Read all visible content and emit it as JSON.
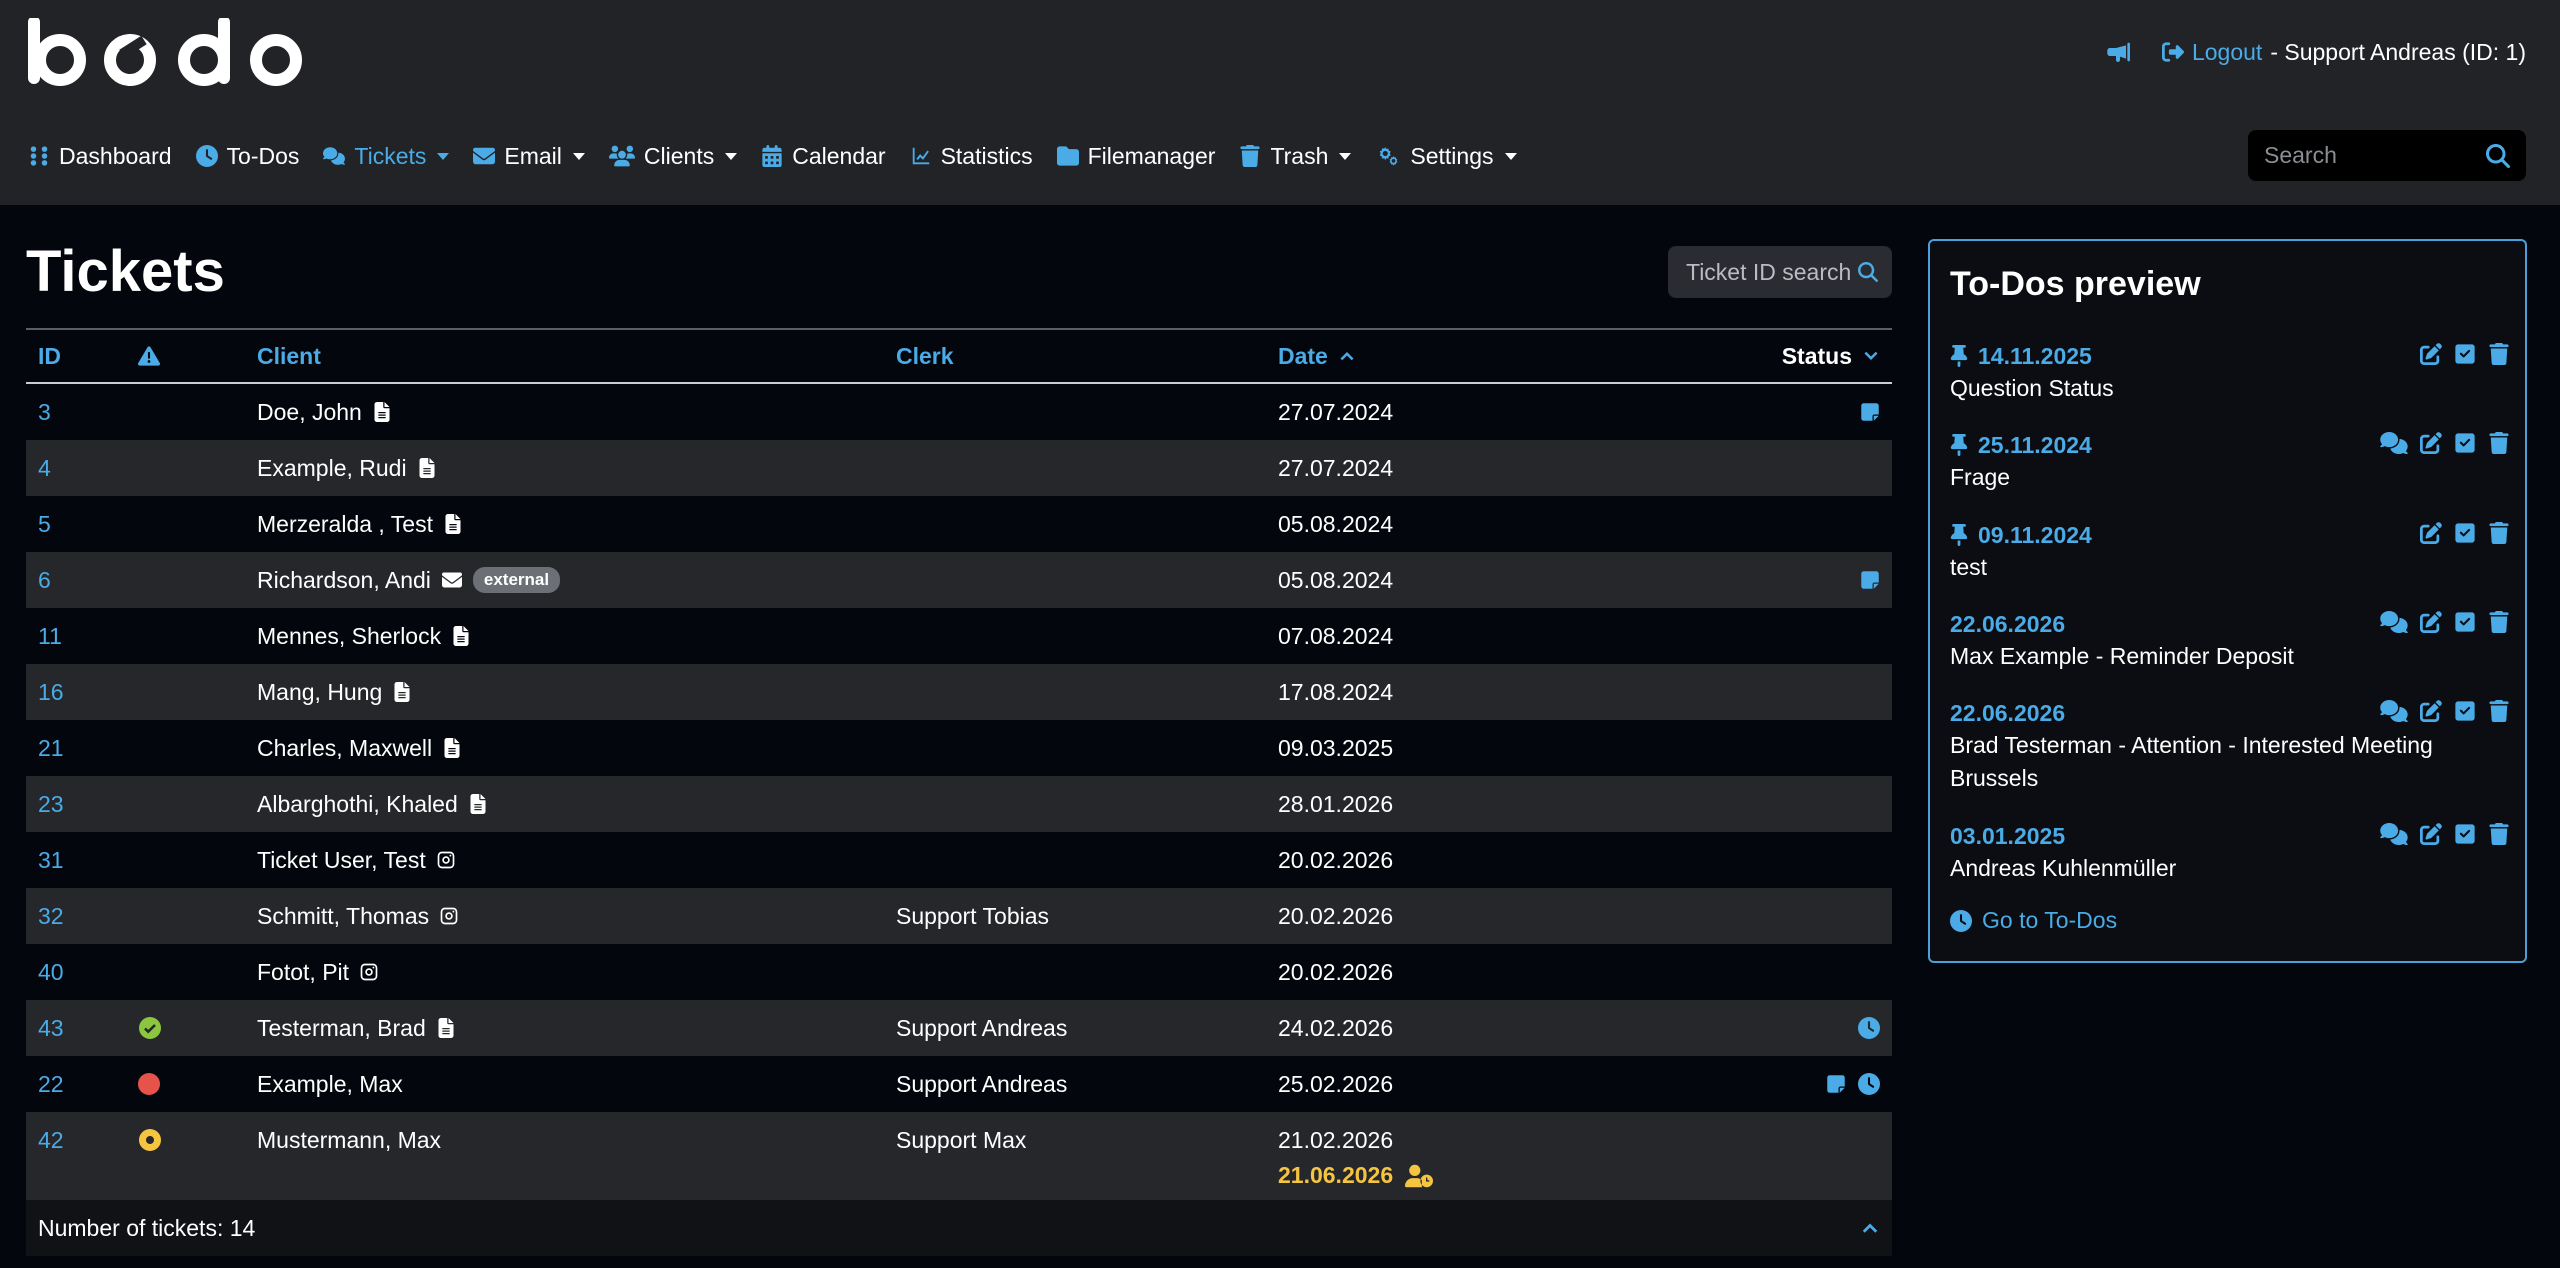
{
  "brand": {
    "logo_text": "bodo"
  },
  "user": {
    "logout_label": "Logout",
    "user_label": "- Support Andreas (ID: 1)"
  },
  "nav": {
    "items": [
      {
        "label": "Dashboard"
      },
      {
        "label": "To-Dos"
      },
      {
        "label": "Tickets"
      },
      {
        "label": "Email"
      },
      {
        "label": "Clients"
      },
      {
        "label": "Calendar"
      },
      {
        "label": "Statistics"
      },
      {
        "label": "Filemanager"
      },
      {
        "label": "Trash"
      },
      {
        "label": "Settings"
      }
    ],
    "search_placeholder": "Search"
  },
  "page": {
    "title": "Tickets",
    "ticket_search_placeholder": "Ticket ID search"
  },
  "table": {
    "headers": {
      "id": "ID",
      "client": "Client",
      "clerk": "Clerk",
      "date": "Date",
      "status": "Status"
    },
    "rows": [
      {
        "id": "3",
        "client": "Doe, John",
        "clerk": "",
        "date": "27.07.2024"
      },
      {
        "id": "4",
        "client": "Example, Rudi",
        "clerk": "",
        "date": "27.07.2024"
      },
      {
        "id": "5",
        "client": "Merzeralda , Test",
        "clerk": "",
        "date": "05.08.2024"
      },
      {
        "id": "6",
        "client": "Richardson, Andi",
        "clerk": "",
        "date": "05.08.2024",
        "badge": "external"
      },
      {
        "id": "11",
        "client": "Mennes, Sherlock",
        "clerk": "",
        "date": "07.08.2024"
      },
      {
        "id": "16",
        "client": "Mang, Hung",
        "clerk": "",
        "date": "17.08.2024"
      },
      {
        "id": "21",
        "client": "Charles, Maxwell",
        "clerk": "",
        "date": "09.03.2025"
      },
      {
        "id": "23",
        "client": "Albarghothi, Khaled",
        "clerk": "",
        "date": "28.01.2026"
      },
      {
        "id": "31",
        "client": "Ticket User, Test",
        "clerk": "",
        "date": "20.02.2026"
      },
      {
        "id": "32",
        "client": "Schmitt, Thomas",
        "clerk": "Support Tobias",
        "date": "20.02.2026"
      },
      {
        "id": "40",
        "client": "Fotot, Pit",
        "clerk": "",
        "date": "20.02.2026"
      },
      {
        "id": "43",
        "client": "Testerman, Brad",
        "clerk": "Support Andreas",
        "date": "24.02.2026"
      },
      {
        "id": "22",
        "client": "Example, Max",
        "clerk": "Support Andreas",
        "date": "25.02.2026"
      },
      {
        "id": "42",
        "client": "Mustermann, Max",
        "clerk": "Support Max",
        "date": "21.02.2026",
        "date2": "21.06.2026"
      }
    ],
    "footer": "Number of tickets: 14"
  },
  "todos": {
    "title": "To-Dos preview",
    "items": [
      {
        "date": "14.11.2025",
        "text": "Question Status"
      },
      {
        "date": "25.11.2024",
        "text": "Frage"
      },
      {
        "date": "09.11.2024",
        "text": "test"
      },
      {
        "date": "22.06.2026",
        "text": "Max Example - Reminder Deposit"
      },
      {
        "date": "22.06.2026",
        "text": "Brad Testerman - Attention - Interested Meeting Brussels"
      },
      {
        "date": "03.01.2025",
        "text": "Andreas Kuhlenmüller"
      }
    ],
    "goto_label": "Go to To-Dos"
  },
  "colors": {
    "accent": "#4aabe6",
    "green": "#8cc63f",
    "red": "#e5534b",
    "yellow": "#f5c542",
    "bg": "#04060d",
    "topbar": "#212327"
  }
}
